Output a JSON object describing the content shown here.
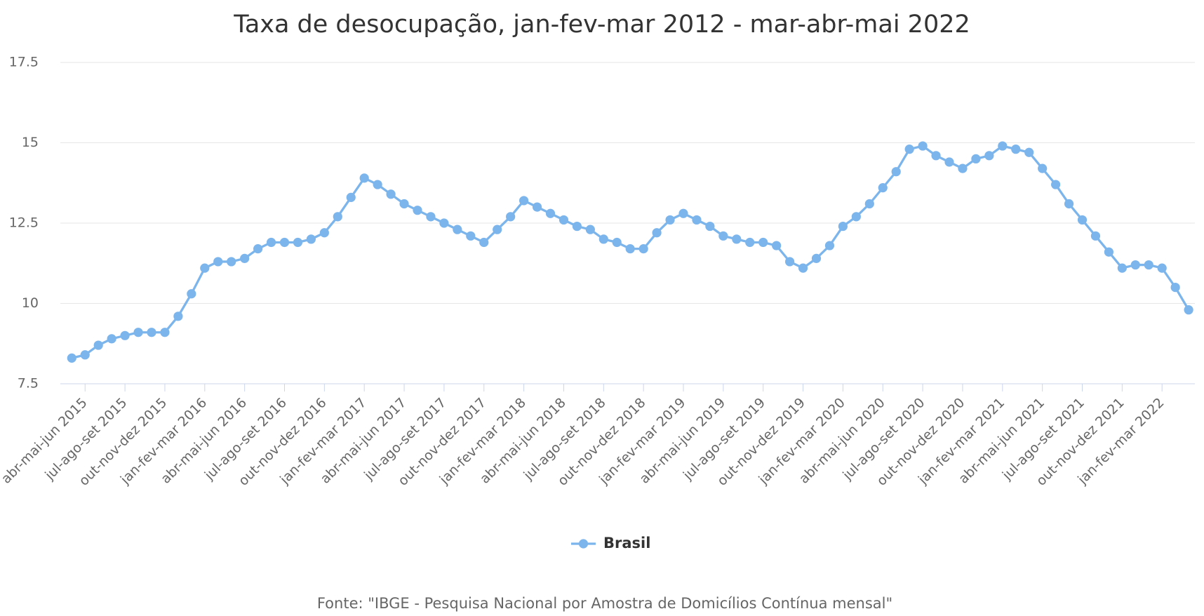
{
  "chart_data": {
    "type": "line",
    "title": "Taxa de desocupação, jan-fev-mar 2012 - mar-abr-mai 2022",
    "credits": "Fonte: \"IBGE - Pesquisa Nacional por Amostra de Domicílios Contínua mensal\"",
    "categories": [
      null,
      "abr-mai-jun 2015",
      null,
      null,
      "jul-ago-set 2015",
      null,
      null,
      "out-nov-dez 2015",
      null,
      null,
      "jan-fev-mar 2016",
      null,
      null,
      "abr-mai-jun 2016",
      null,
      null,
      "jul-ago-set 2016",
      null,
      null,
      "out-nov-dez 2016",
      null,
      null,
      "jan-fev-mar 2017",
      null,
      null,
      "abr-mai-jun 2017",
      null,
      null,
      "jul-ago-set 2017",
      null,
      null,
      "out-nov-dez 2017",
      null,
      null,
      "jan-fev-mar 2018",
      null,
      null,
      "abr-mai-jun 2018",
      null,
      null,
      "jul-ago-set 2018",
      null,
      null,
      "out-nov-dez 2018",
      null,
      null,
      "jan-fev-mar 2019",
      null,
      null,
      "abr-mai-jun 2019",
      null,
      null,
      "jul-ago-set 2019",
      null,
      null,
      "out-nov-dez 2019",
      null,
      null,
      "jan-fev-mar 2020",
      null,
      null,
      "abr-mai-jun 2020",
      null,
      null,
      "jul-ago-set 2020",
      null,
      null,
      "out-nov-dez 2020",
      null,
      null,
      "jan-fev-mar 2021",
      null,
      null,
      "abr-mai-jun 2021",
      null,
      null,
      "jul-ago-set 2021",
      null,
      null,
      "out-nov-dez 2021",
      null,
      null,
      "jan-fev-mar 2022",
      null,
      null
    ],
    "series": [
      {
        "name": "Brasil",
        "color": "#7cb5ec",
        "values": [
          8.3,
          8.4,
          8.7,
          8.9,
          9.0,
          9.1,
          9.1,
          9.1,
          9.6,
          10.3,
          11.1,
          11.3,
          11.3,
          11.4,
          11.7,
          11.9,
          11.9,
          11.9,
          12.0,
          12.2,
          12.7,
          13.3,
          13.9,
          13.7,
          13.4,
          13.1,
          12.9,
          12.7,
          12.5,
          12.3,
          12.1,
          11.9,
          12.3,
          12.7,
          13.2,
          13.0,
          12.8,
          12.6,
          12.4,
          12.3,
          12.0,
          11.9,
          11.7,
          11.7,
          12.2,
          12.6,
          12.8,
          12.6,
          12.4,
          12.1,
          12.0,
          11.9,
          11.9,
          11.8,
          11.3,
          11.1,
          11.4,
          11.8,
          12.4,
          12.7,
          13.1,
          13.6,
          14.1,
          14.8,
          14.9,
          14.6,
          14.4,
          14.2,
          14.5,
          14.6,
          14.9,
          14.8,
          14.7,
          14.2,
          13.7,
          13.1,
          12.6,
          12.1,
          11.6,
          11.1,
          11.2,
          11.2,
          11.1,
          10.5,
          9.8
        ]
      }
    ],
    "ylim": [
      7.5,
      17.5
    ],
    "yticks": [
      7.5,
      10,
      12.5,
      15,
      17.5
    ],
    "grid": true,
    "legend": "bottom"
  }
}
